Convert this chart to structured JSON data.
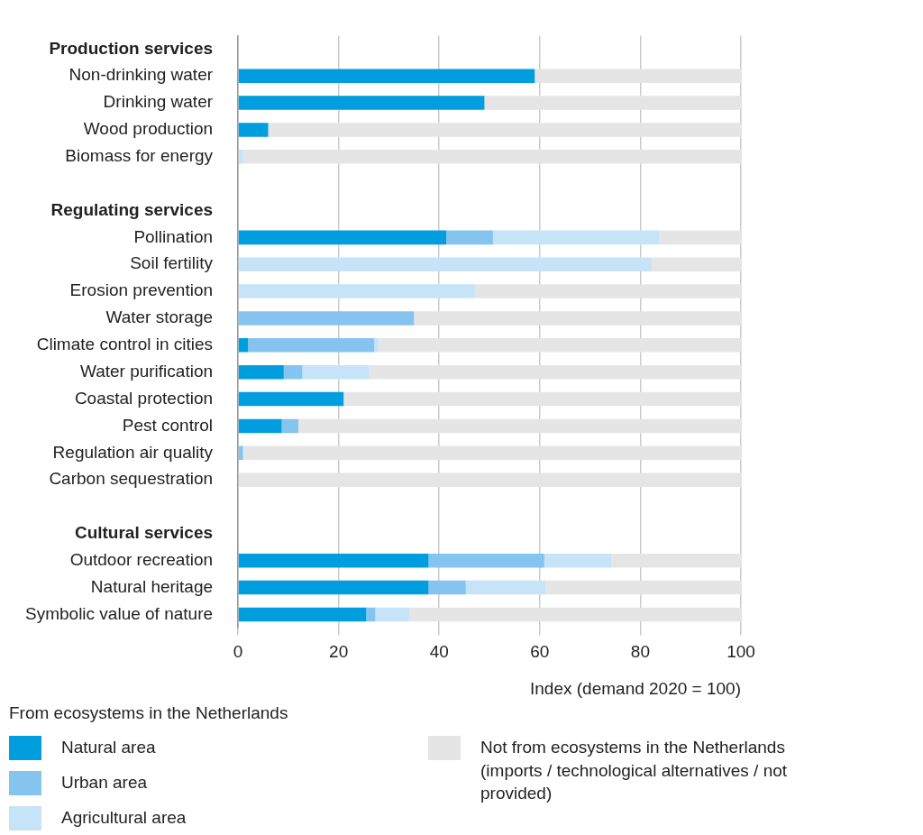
{
  "chart_data": {
    "type": "bar",
    "orientation": "horizontal",
    "stacked": true,
    "categories": [
      "Production services",
      "Non-drinking water",
      "Drinking water",
      "Wood production",
      "Biomass for energy",
      null,
      "Regulating services",
      "Pollination",
      "Soil fertility",
      "Erosion prevention",
      "Water storage",
      "Climate control in cities",
      "Water purification",
      "Coastal protection",
      "Pest control",
      "Regulation air quality",
      "Carbon sequestration",
      null,
      "Cultural services",
      "Outdoor recreation",
      "Natural heritage",
      "Symbolic value of nature"
    ],
    "series": [
      {
        "name": "Natural area",
        "color": "#009ddf",
        "values": [
          null,
          59,
          49,
          6,
          null,
          null,
          null,
          41.4,
          null,
          null,
          null,
          2,
          9.1,
          21,
          8.7,
          null,
          null,
          null,
          null,
          37.9,
          37.9,
          25.5
        ]
      },
      {
        "name": "Urban area",
        "color": "#85c4ef",
        "values": [
          null,
          null,
          null,
          null,
          null,
          null,
          null,
          9.3,
          null,
          null,
          35,
          25.1,
          3.7,
          null,
          3.3,
          1,
          null,
          null,
          null,
          23,
          7.4,
          1.8
        ]
      },
      {
        "name": "Agricultural area",
        "color": "#c7e3f7",
        "values": [
          null,
          null,
          null,
          null,
          1,
          null,
          null,
          33,
          82.3,
          47.1,
          null,
          0.9,
          13.3,
          null,
          null,
          null,
          null,
          null,
          null,
          13.3,
          15.9,
          6.8
        ]
      },
      {
        "name": "Not from ecosystems in the Netherlands\n(imports / technological alternatives / not provided)",
        "color": "#e5e5e5",
        "values": [
          null,
          41,
          51,
          94,
          99,
          null,
          null,
          16.3,
          17.7,
          52.9,
          65,
          72,
          73.9,
          79,
          88,
          99,
          100,
          null,
          null,
          25.8,
          38.8,
          65.9
        ]
      }
    ],
    "xlabel": "Index (demand 2020 = 100)",
    "xlim": [
      0,
      100
    ],
    "xticks": [
      0,
      20,
      40,
      60,
      80,
      100
    ],
    "grid": "x",
    "legend": "bottom",
    "legend_title": "From ecosystems in the Netherlands"
  }
}
